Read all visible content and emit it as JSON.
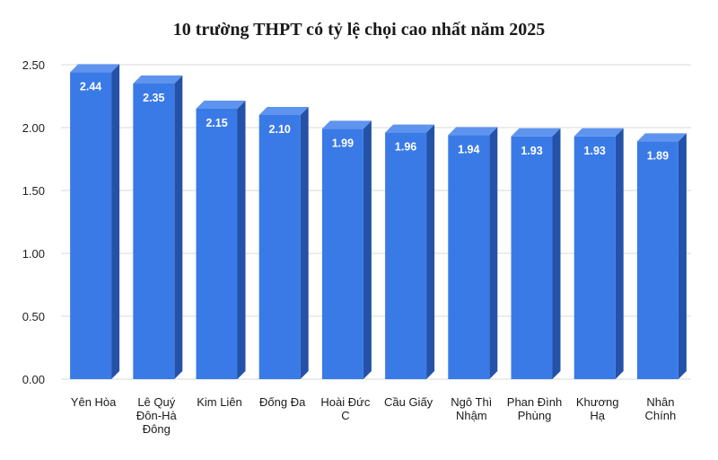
{
  "chart_data": {
    "type": "bar",
    "title": "10 trường THPT có tỷ lệ chọi cao nhất năm 2025",
    "xlabel": "",
    "ylabel": "",
    "categories": [
      [
        "Yên Hòa"
      ],
      [
        "Lê Quý",
        "Đôn-Hà",
        "Đông"
      ],
      [
        "Kim Liên"
      ],
      [
        "Đống Đa"
      ],
      [
        "Hoài Đức",
        "C"
      ],
      [
        "Cầu Giấy"
      ],
      [
        "Ngô Thì",
        "Nhậm"
      ],
      [
        "Phan Đình",
        "Phùng"
      ],
      [
        "Khương",
        "Hạ"
      ],
      [
        "Nhân",
        "Chính"
      ]
    ],
    "values": [
      2.44,
      2.35,
      2.15,
      2.1,
      1.99,
      1.96,
      1.94,
      1.93,
      1.93,
      1.89
    ],
    "value_labels": [
      "2.44",
      "2.35",
      "2.15",
      "2.10",
      "1.99",
      "1.96",
      "1.94",
      "1.93",
      "1.93",
      "1.89"
    ],
    "ylim": [
      0,
      2.5
    ],
    "yticks": [
      "0.00",
      "0.50",
      "1.00",
      "1.50",
      "2.00",
      "2.50"
    ],
    "grid": true,
    "legend": "none",
    "colors": {
      "bar_front": "#3a7ae6",
      "bar_side": "#2452a8",
      "bar_top": "#5e94ee",
      "grid": "#d9d9d9"
    }
  }
}
